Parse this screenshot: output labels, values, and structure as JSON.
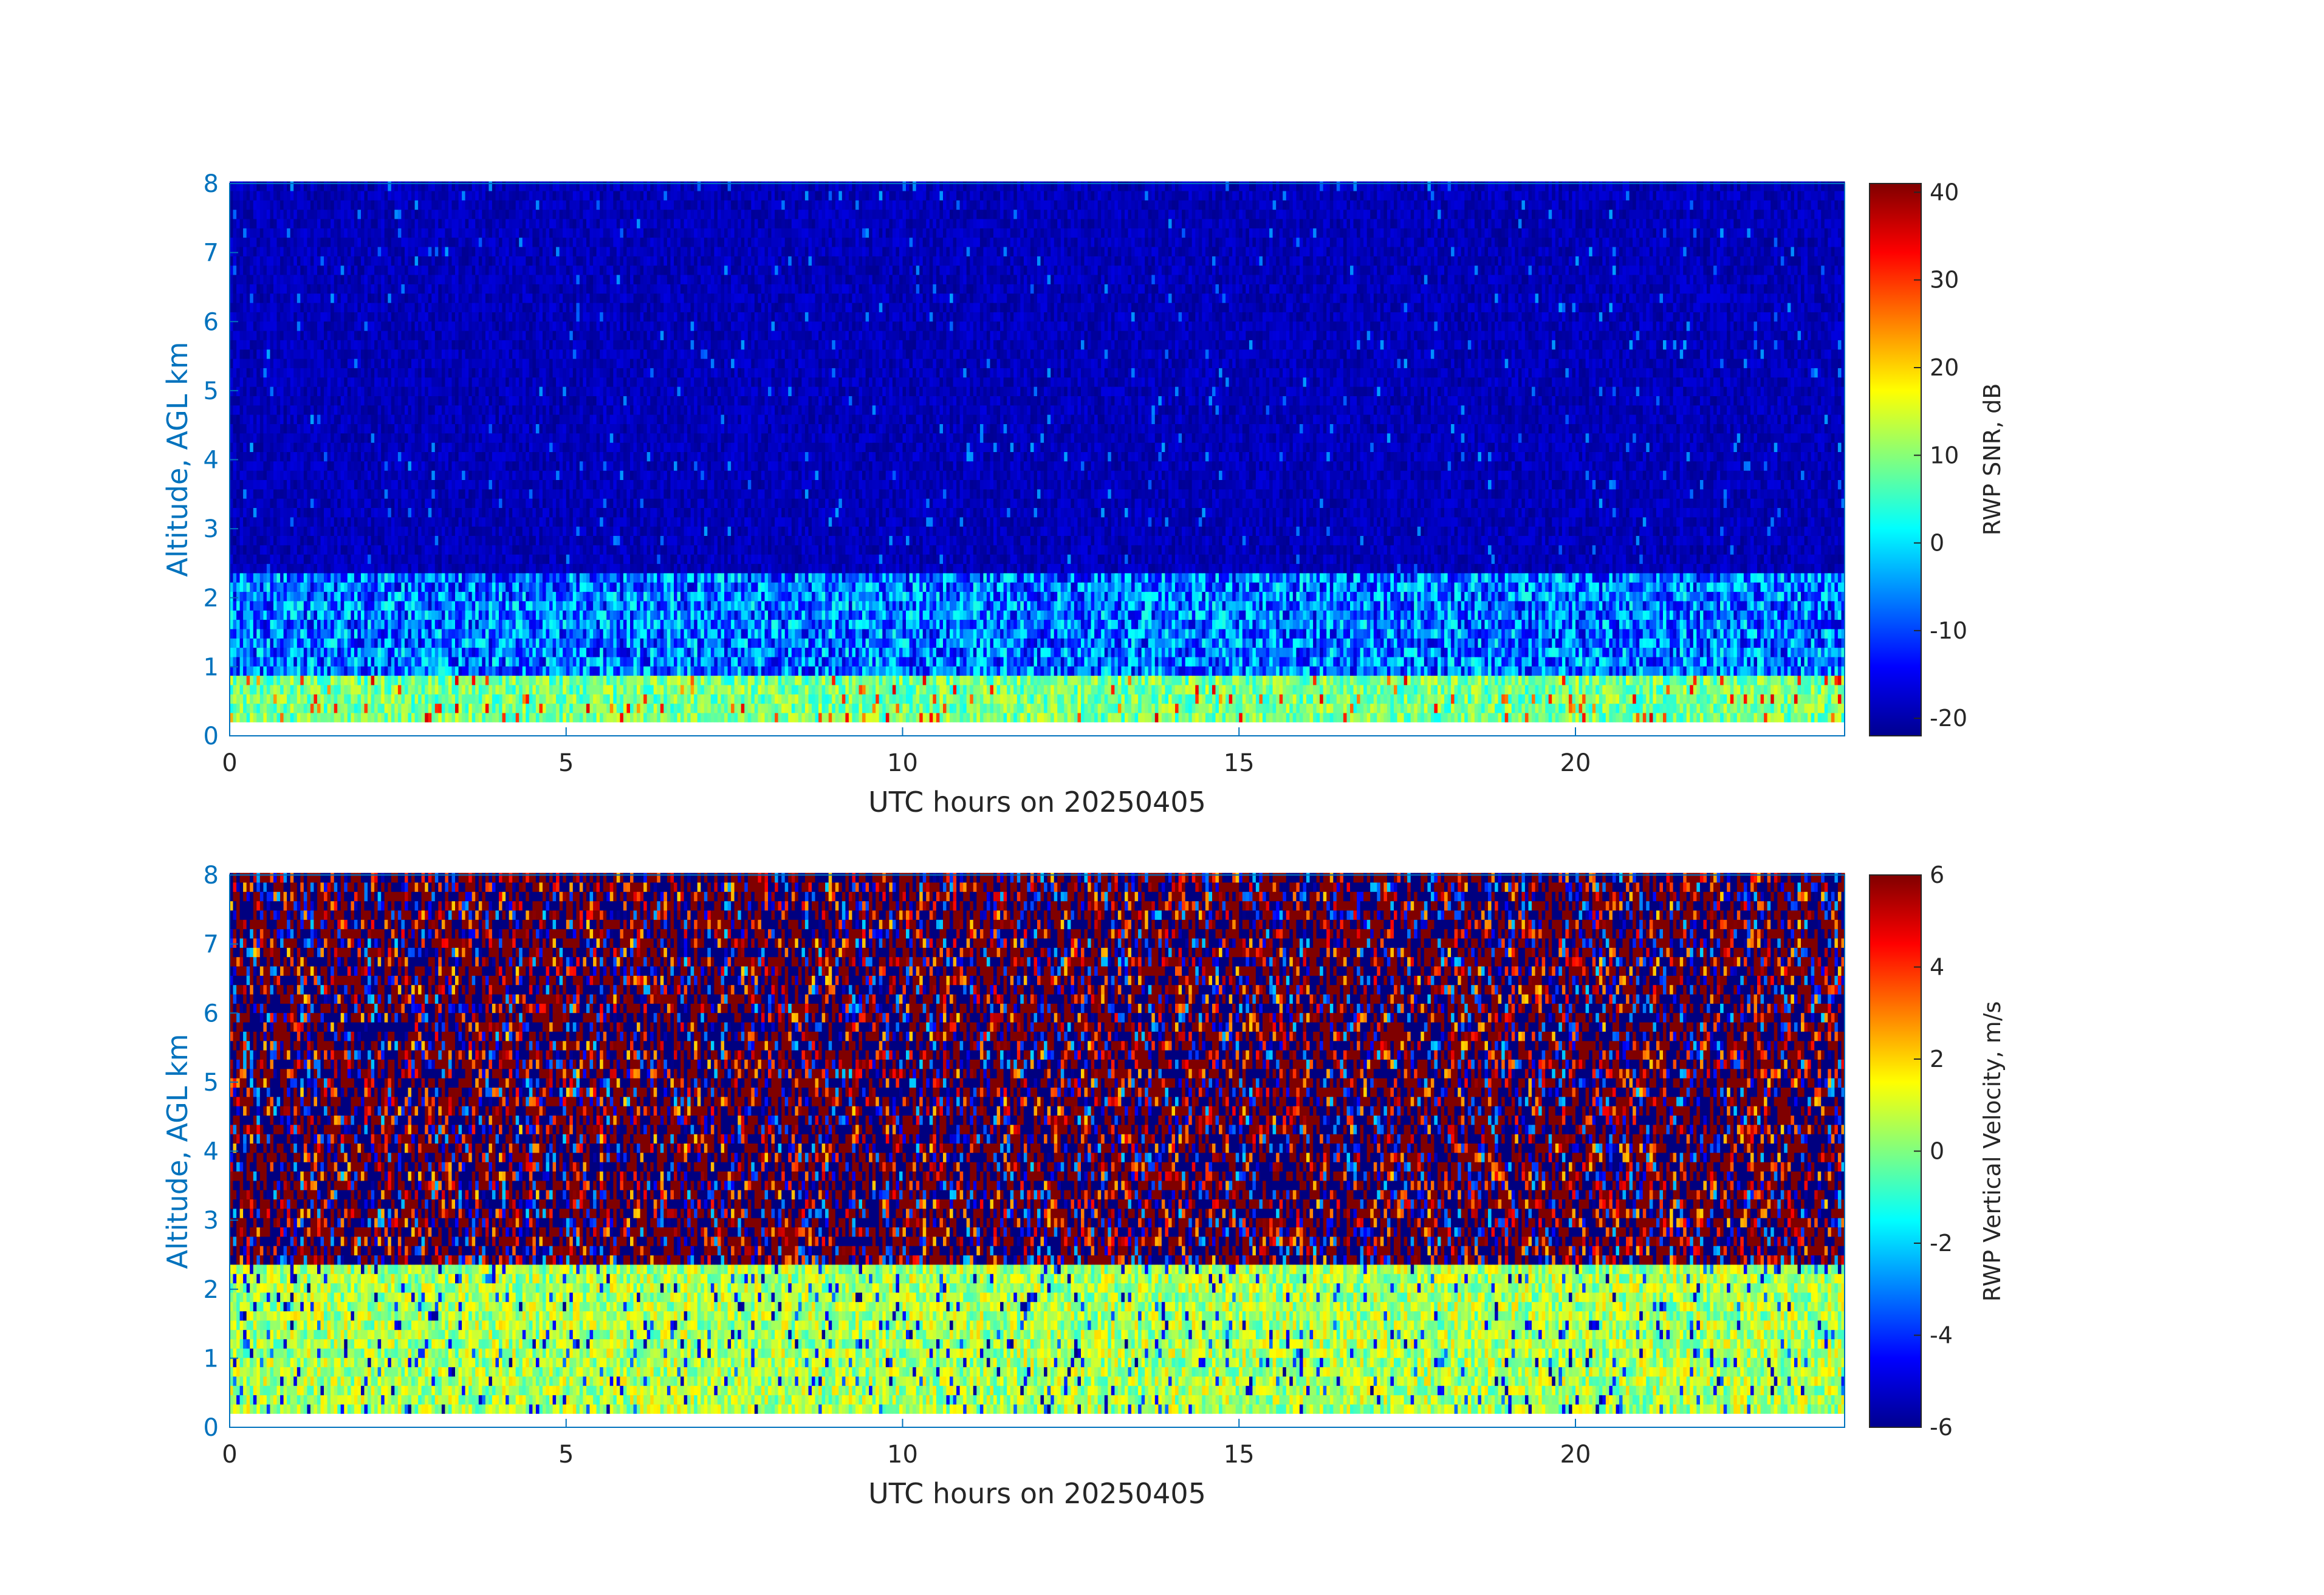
{
  "chart_data": [
    {
      "type": "heatmap",
      "title": "",
      "xlabel": "UTC hours on 20250405",
      "ylabel": "Altitude, AGL km",
      "xlim": [
        0,
        24
      ],
      "ylim": [
        0,
        8
      ],
      "xticks": [
        0,
        5,
        10,
        15,
        20
      ],
      "yticks": [
        0,
        1,
        2,
        3,
        4,
        5,
        6,
        7,
        8
      ],
      "colormap": "jet",
      "colorbar": {
        "label": "RWP SNR, dB",
        "clim": [
          -22,
          41
        ],
        "ticks": [
          -20,
          -10,
          0,
          10,
          20,
          30,
          40
        ]
      },
      "data_extent": {
        "x": [
          0,
          24
        ],
        "y": [
          0.2,
          8
        ]
      },
      "layers": [
        {
          "altitude_km": [
            0.2,
            0.9
          ],
          "typical_value": 8,
          "note_values": "near-surface layer, mostly 0 to 15 dB with peaks near 40 dB around 4, 5.5, 9.7, 16.5 h"
        },
        {
          "altitude_km": [
            0.9,
            2.3
          ],
          "typical_value": -5,
          "note_values": "mixed -20 to 5 dB"
        },
        {
          "altitude_km": [
            2.3,
            8.0
          ],
          "typical_value": -20,
          "note_values": "noise floor about -20 dB"
        }
      ]
    },
    {
      "type": "heatmap",
      "title": "",
      "xlabel": "UTC hours on 20250405",
      "ylabel": "Altitude, AGL km",
      "xlim": [
        0,
        24
      ],
      "ylim": [
        0,
        8
      ],
      "xticks": [
        0,
        5,
        10,
        15,
        20
      ],
      "yticks": [
        0,
        1,
        2,
        3,
        4,
        5,
        6,
        7,
        8
      ],
      "colormap": "jet",
      "colorbar": {
        "label": "RWP Vertical Velocity, m/s",
        "clim": [
          -6,
          6
        ],
        "ticks": [
          -6,
          -4,
          -2,
          0,
          2,
          4,
          6
        ]
      },
      "data_extent": {
        "x": [
          0,
          24
        ],
        "y": [
          0.2,
          8
        ]
      },
      "layers": [
        {
          "altitude_km": [
            0.2,
            2.3
          ],
          "typical_value": 0.5,
          "note_values": "mostly -2 to 2 m/s with downdraft streaks near -6 m/s"
        },
        {
          "altitude_km": [
            2.3,
            8.0
          ],
          "typical_value": 0,
          "note_values": "noise alternating between -6 and 6 m/s"
        }
      ]
    }
  ]
}
